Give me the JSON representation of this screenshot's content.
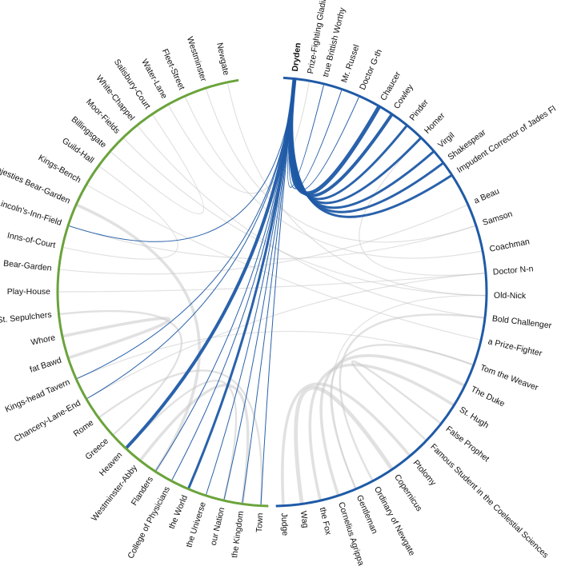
{
  "colors": {
    "left_arc": "#6aa33b",
    "right_arc": "#1f5aa6",
    "highlight_link": "#1f5aa6",
    "muted_link": "#c9c9c9",
    "label": "#111111"
  },
  "highlighted_node": "Dryden",
  "right_group": [
    {
      "label": "Dryden",
      "angle": 6
    },
    {
      "label": "Prize-Fighting Gladiator",
      "angle": 10
    },
    {
      "label": "true Brittish Worthy",
      "angle": 14
    },
    {
      "label": "Mr. Russel",
      "angle": 19
    },
    {
      "label": "Doctor G-th",
      "angle": 24
    },
    {
      "label": "Chaucer",
      "angle": 30
    },
    {
      "label": "Cowley",
      "angle": 34
    },
    {
      "label": "Pinder",
      "angle": 39
    },
    {
      "label": "Homer",
      "angle": 44
    },
    {
      "label": "Virgil",
      "angle": 49
    },
    {
      "label": "Shakespear",
      "angle": 53
    },
    {
      "label": "Impudent Corrector of Jades Fl",
      "angle": 57
    },
    {
      "label": "a Beau",
      "angle": 66
    },
    {
      "label": "Samson",
      "angle": 72
    },
    {
      "label": "Coachman",
      "angle": 79
    },
    {
      "label": "Doctor N-n",
      "angle": 85
    },
    {
      "label": "Old-Nick",
      "angle": 91
    },
    {
      "label": "Bold Challenger",
      "angle": 97
    },
    {
      "label": "a Prize-Fighter",
      "angle": 103
    },
    {
      "label": "Tom the Weaver",
      "angle": 110
    },
    {
      "label": "The Duke",
      "angle": 116
    },
    {
      "label": "St. Hugh",
      "angle": 122
    },
    {
      "label": "False Prophet",
      "angle": 128
    },
    {
      "label": "Famous Student in the Coelestial Sciences",
      "angle": 134
    },
    {
      "label": "Ptolomy",
      "angle": 140
    },
    {
      "label": "Copernicus",
      "angle": 146
    },
    {
      "label": "Ordinary of Newgate",
      "angle": 152
    },
    {
      "label": "Gentleman",
      "angle": 157
    },
    {
      "label": "Cornelius Agrippa",
      "angle": 162
    },
    {
      "label": "the Fox",
      "angle": 167
    },
    {
      "label": "Wag",
      "angle": 172
    },
    {
      "label": "Judge",
      "angle": 177
    }
  ],
  "left_group": [
    {
      "label": "Town",
      "angle": 183
    },
    {
      "label": "the Kingdom",
      "angle": 188
    },
    {
      "label": "our Nation",
      "angle": 193
    },
    {
      "label": "the Universe",
      "angle": 198
    },
    {
      "label": "the World",
      "angle": 203
    },
    {
      "label": "College of Physicians",
      "angle": 208
    },
    {
      "label": "Flanders",
      "angle": 213
    },
    {
      "label": "Westminster-Abby",
      "angle": 218
    },
    {
      "label": "Heaven",
      "angle": 223
    },
    {
      "label": "Greece",
      "angle": 228
    },
    {
      "label": "Rome",
      "angle": 234
    },
    {
      "label": "Chancery-Lane-End",
      "angle": 240
    },
    {
      "label": "Kings-head Tavern",
      "angle": 246
    },
    {
      "label": "fat Bawd",
      "angle": 252
    },
    {
      "label": "Whore",
      "angle": 258
    },
    {
      "label": "St. Sepulchers",
      "angle": 264
    },
    {
      "label": "Play-House",
      "angle": 270
    },
    {
      "label": "Bear-Garden",
      "angle": 276
    },
    {
      "label": "Inns-of-Court",
      "angle": 282
    },
    {
      "label": "Lincoln's-Inn-Field",
      "angle": 288
    },
    {
      "label": "Her Majesties Bear-Garden",
      "angle": 294
    },
    {
      "label": "Kings-Bench",
      "angle": 300
    },
    {
      "label": "Guild-Hall",
      "angle": 306
    },
    {
      "label": "Billingsgate",
      "angle": 311
    },
    {
      "label": "Moor-Fields",
      "angle": 316
    },
    {
      "label": "White-Chappel",
      "angle": 321
    },
    {
      "label": "Salisbury-Court",
      "angle": 326
    },
    {
      "label": "Water-Lane",
      "angle": 331
    },
    {
      "label": "Fleet-Street",
      "angle": 336
    },
    {
      "label": "Westminster",
      "angle": 342
    },
    {
      "label": "Newgate",
      "angle": 348
    }
  ],
  "highlighted_links": [
    {
      "source": "Dryden",
      "target": "Heaven",
      "weight": 4
    },
    {
      "source": "Dryden",
      "target": "the World",
      "weight": 3
    },
    {
      "source": "Dryden",
      "target": "College of Physicians",
      "weight": 1
    },
    {
      "source": "Dryden",
      "target": "Flanders",
      "weight": 1
    },
    {
      "source": "Dryden",
      "target": "the Universe",
      "weight": 1
    },
    {
      "source": "Dryden",
      "target": "our Nation",
      "weight": 1
    },
    {
      "source": "Dryden",
      "target": "the Kingdom",
      "weight": 1
    },
    {
      "source": "Dryden",
      "target": "Town",
      "weight": 1
    },
    {
      "source": "Dryden",
      "target": "Lincoln's-Inn-Field",
      "weight": 1
    },
    {
      "source": "Dryden",
      "target": "Chancery-Lane-End",
      "weight": 1
    },
    {
      "source": "Dryden",
      "target": "Kings-head Tavern",
      "weight": 1
    },
    {
      "source": "Dryden",
      "target": "Chaucer",
      "weight": 5
    },
    {
      "source": "Dryden",
      "target": "Cowley",
      "weight": 4
    },
    {
      "source": "Dryden",
      "target": "Pinder",
      "weight": 3
    },
    {
      "source": "Dryden",
      "target": "Homer",
      "weight": 3
    },
    {
      "source": "Dryden",
      "target": "Virgil",
      "weight": 3
    },
    {
      "source": "Dryden",
      "target": "Shakespear",
      "weight": 3
    },
    {
      "source": "Dryden",
      "target": "Impudent Corrector of Jades Fl",
      "weight": 3
    },
    {
      "source": "Dryden",
      "target": "Mr. Russel",
      "weight": 1
    },
    {
      "source": "Dryden",
      "target": "true Brittish Worthy",
      "weight": 1
    },
    {
      "source": "Dryden",
      "target": "Doctor G-th",
      "weight": 1
    }
  ],
  "muted_links": [
    {
      "source": "Judge",
      "target": "Ptolomy",
      "weight": 3
    },
    {
      "source": "Wag",
      "target": "Copernicus",
      "weight": 4
    },
    {
      "source": "the Fox",
      "target": "St. Hugh",
      "weight": 3
    },
    {
      "source": "Cornelius Agrippa",
      "target": "The Duke",
      "weight": 3
    },
    {
      "source": "Gentleman",
      "target": "Tom the Weaver",
      "weight": 2
    },
    {
      "source": "Ordinary of Newgate",
      "target": "Bold Challenger",
      "weight": 2
    },
    {
      "source": "Famous Student in the Coelestial Sciences",
      "target": "False Prophet",
      "weight": 2
    },
    {
      "source": "Old-Nick",
      "target": "Newgate",
      "weight": 1
    },
    {
      "source": "Samson",
      "target": "Westminster",
      "weight": 1
    },
    {
      "source": "Coachman",
      "target": "Fleet-Street",
      "weight": 1
    },
    {
      "source": "Doctor N-n",
      "target": "Play-House",
      "weight": 1
    },
    {
      "source": "a Beau",
      "target": "Bear-Garden",
      "weight": 1
    },
    {
      "source": "a Prize-Fighter",
      "target": "Kings-Bench",
      "weight": 1
    },
    {
      "source": "Prize-Fighting Gladiator",
      "target": "Water-Lane",
      "weight": 1
    },
    {
      "source": "Whore",
      "target": "fat Bawd",
      "weight": 3
    },
    {
      "source": "St. Sepulchers",
      "target": "Greece",
      "weight": 2
    },
    {
      "source": "Rome",
      "target": "Town",
      "weight": 2
    },
    {
      "source": "Westminster-Abby",
      "target": "the Kingdom",
      "weight": 3
    },
    {
      "source": "Heaven",
      "target": "our Nation",
      "weight": 2
    },
    {
      "source": "Her Majesties Bear-Garden",
      "target": "Flanders",
      "weight": 3
    },
    {
      "source": "Inns-of-Court",
      "target": "Guild-Hall",
      "weight": 1
    },
    {
      "source": "Billingsgate",
      "target": "Salisbury-Court",
      "weight": 1
    },
    {
      "source": "Moor-Fields",
      "target": "Old-Nick",
      "weight": 1
    },
    {
      "source": "White-Chappel",
      "target": "Bold Challenger",
      "weight": 1
    },
    {
      "source": "Chancery-Lane-End",
      "target": "Doctor N-n",
      "weight": 1
    },
    {
      "source": "Lincoln's-Inn-Field",
      "target": "Samson",
      "weight": 1
    },
    {
      "source": "Kings-head Tavern",
      "target": "Tom the Weaver",
      "weight": 1
    },
    {
      "source": "Homer",
      "target": "Doctor N-n",
      "weight": 1
    },
    {
      "source": "Gentleman",
      "target": "Old-Nick",
      "weight": 1
    }
  ]
}
